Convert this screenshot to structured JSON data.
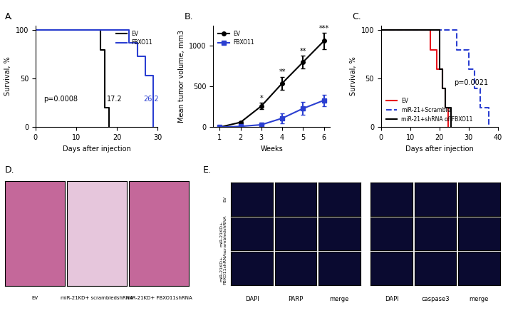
{
  "chart_data": [
    {
      "type": "step",
      "title": "A.",
      "x_label": "Days after injection",
      "y_label": "Survival, %",
      "xlim": [
        0,
        30
      ],
      "xticks": [
        0,
        10,
        20,
        30
      ],
      "ylim": [
        0,
        105
      ],
      "yticks": [
        0,
        50,
        100
      ],
      "series": [
        {
          "name": "EV",
          "color": "#000000",
          "line_style": "solid",
          "x": [
            0,
            16,
            17,
            18
          ],
          "values": [
            100,
            80,
            20,
            0
          ]
        },
        {
          "name": "FBXO11",
          "color": "#2b3fd1",
          "line_style": "solid",
          "x": [
            0,
            23,
            25,
            27,
            29
          ],
          "values": [
            100,
            87,
            73,
            53,
            0
          ]
        }
      ],
      "legend": "upper right",
      "annotations": [
        {
          "text": "p=0.0008",
          "x": 2,
          "y": 25,
          "color": "#000000"
        },
        {
          "text": "17.2",
          "x": 17.5,
          "y": 25,
          "color": "#000000"
        },
        {
          "text": "26.2",
          "x": 26.5,
          "y": 25,
          "color": "#2b3fd1"
        }
      ]
    },
    {
      "type": "line",
      "title": "B.",
      "x_label": "Weeks",
      "y_label": "Mean tumor volume, mm3",
      "xlim": [
        0.7,
        6.3
      ],
      "xticks": [
        1,
        2,
        3,
        4,
        5,
        6
      ],
      "ylim": [
        0,
        1250
      ],
      "yticks": [
        0,
        500,
        1000
      ],
      "x": [
        1,
        2,
        3,
        4,
        5,
        6
      ],
      "series": [
        {
          "name": "EV",
          "color": "#000000",
          "marker": "o",
          "values": [
            0,
            60,
            260,
            540,
            800,
            1060
          ],
          "errors": [
            0,
            15,
            40,
            80,
            80,
            100
          ]
        },
        {
          "name": "FBXO11",
          "color": "#2b3fd1",
          "marker": "s",
          "values": [
            0,
            10,
            30,
            110,
            230,
            330
          ],
          "errors": [
            0,
            5,
            30,
            60,
            80,
            70
          ]
        }
      ],
      "legend": "upper left",
      "annotations": [
        {
          "text": "*",
          "x": 3,
          "y": 310,
          "color": "#000000"
        },
        {
          "text": "**",
          "x": 4,
          "y": 630,
          "color": "#000000"
        },
        {
          "text": "**",
          "x": 5,
          "y": 890,
          "color": "#000000"
        },
        {
          "text": "***",
          "x": 6,
          "y": 1170,
          "color": "#000000"
        }
      ]
    },
    {
      "type": "step",
      "title": "C.",
      "x_label": "Days after injection",
      "y_label": "Survival, %",
      "xlim": [
        0,
        40
      ],
      "xticks": [
        0,
        10,
        20,
        30,
        40
      ],
      "ylim": [
        0,
        105
      ],
      "yticks": [
        0,
        50,
        100
      ],
      "series": [
        {
          "name": "EV",
          "color": "#e8141c",
          "line_style": "solid",
          "x": [
            0,
            17,
            19,
            21,
            22,
            23
          ],
          "values": [
            100,
            80,
            60,
            40,
            20,
            0
          ]
        },
        {
          "name": "miR-21+Scramble",
          "color": "#2b3fd1",
          "line_style": "dashed",
          "x": [
            0,
            26,
            30,
            32,
            34,
            37
          ],
          "values": [
            100,
            80,
            60,
            40,
            20,
            0
          ]
        },
        {
          "name": "miR-21+shRNA of FBXO11",
          "color": "#000000",
          "line_style": "solid",
          "x": [
            0,
            20,
            21,
            22,
            24
          ],
          "values": [
            100,
            60,
            40,
            20,
            0
          ]
        }
      ],
      "legend": "lower left",
      "annotations": [
        {
          "text": "p=0.0021",
          "x": 25,
          "y": 42,
          "color": "#000000"
        }
      ]
    }
  ],
  "histology": {
    "title": "D.",
    "images": [
      "EV",
      "miR-21KD+ scrambledshRNA",
      "miR-21KD+ FBXO11shRNA"
    ]
  },
  "immunofluorescence": {
    "title": "E.",
    "rows": [
      "EV",
      "miR-21KD+\nscrambledshRNA",
      "miR-21KD+\nFBXO11shRNA"
    ],
    "groups": [
      [
        "DAPI",
        "PARP",
        "merge"
      ],
      [
        "DAPI",
        "caspase3",
        "merge"
      ]
    ]
  }
}
